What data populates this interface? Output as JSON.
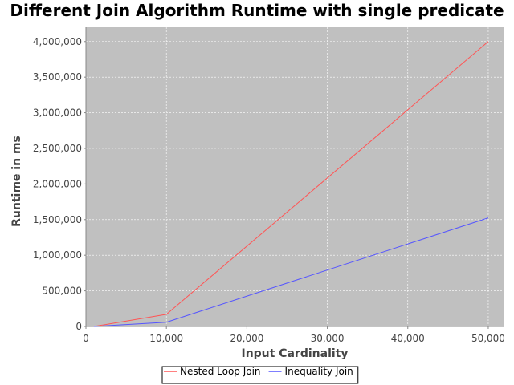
{
  "chart_data": {
    "type": "line",
    "title": "Different Join Algorithm Runtime with single predicate",
    "xlabel": "Input Cardinality",
    "ylabel": "Runtime in ms",
    "xlim": [
      0,
      52000
    ],
    "ylim": [
      0,
      4200000
    ],
    "x_ticks": [
      0,
      10000,
      20000,
      30000,
      40000,
      50000
    ],
    "x_tick_labels": [
      "0",
      "10,000",
      "20,000",
      "30,000",
      "40,000",
      "50,000"
    ],
    "y_ticks": [
      0,
      500000,
      1000000,
      1500000,
      2000000,
      2500000,
      3000000,
      3500000,
      4000000
    ],
    "y_tick_labels": [
      "0",
      "500,000",
      "1,000,000",
      "1,500,000",
      "2,000,000",
      "2,500,000",
      "3,000,000",
      "3,500,000",
      "4,000,000"
    ],
    "grid": true,
    "legend_position": "bottom",
    "plot_background": "#c0c0c0",
    "series": [
      {
        "name": "Nested Loop Join",
        "color": "#ff5555",
        "x": [
          1000,
          10000,
          50000
        ],
        "y": [
          0,
          170000,
          4000000
        ]
      },
      {
        "name": "Inequality Join",
        "color": "#5555ff",
        "x": [
          1000,
          10000,
          50000
        ],
        "y": [
          0,
          60000,
          1525000
        ]
      }
    ]
  }
}
